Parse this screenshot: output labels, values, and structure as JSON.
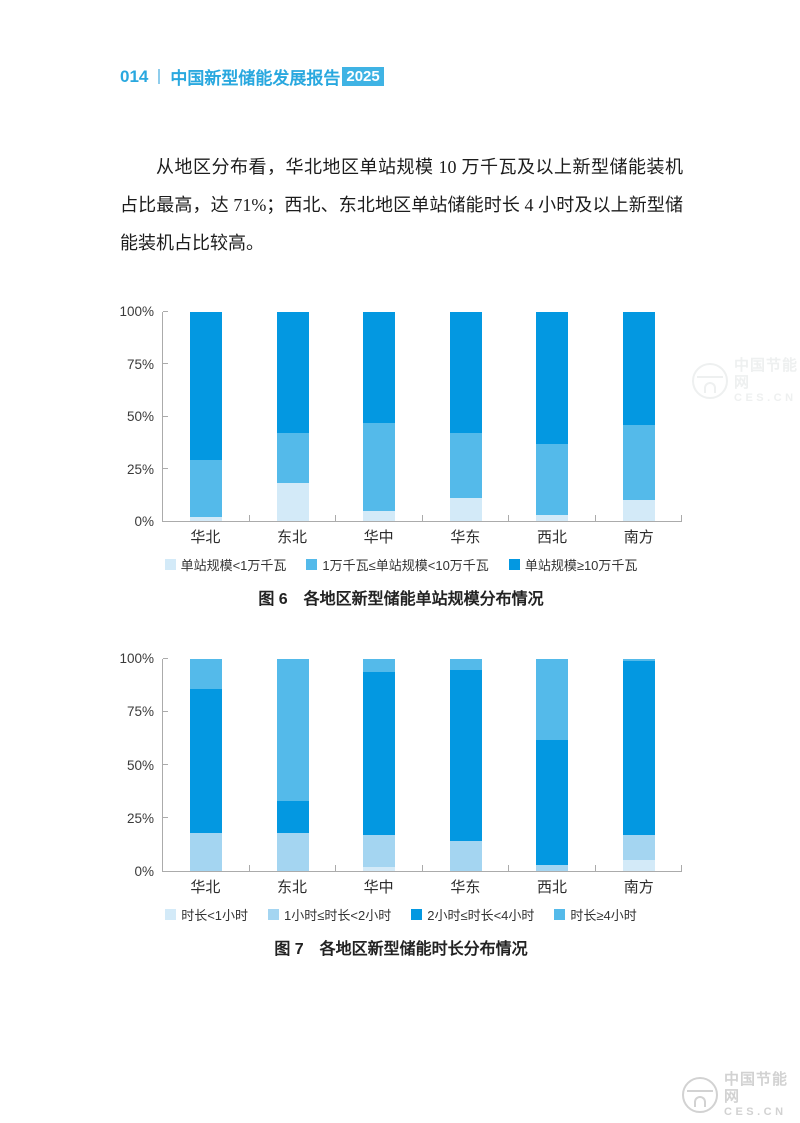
{
  "page": {
    "header": {
      "page_number": "014",
      "title": "中国新型储能发展报告",
      "year_badge": "2025"
    },
    "paragraph": "从地区分布看，华北地区单站规模 10 万千瓦及以上新型储能装机占比最高，达 71%；西北、东北地区单站储能时长 4 小时及以上新型储能装机占比较高。",
    "watermark": {
      "site_name": "中国节能网",
      "site_url": "CES.CN"
    }
  },
  "colors": {
    "accent_blue": "#29a8df",
    "badge_bg": "#3fb3e4",
    "pale_blue": "#d3eaf8",
    "light_blue": "#a4d5f1",
    "medium_blue": "#54baea",
    "dark_blue": "#0398e1",
    "axis_gray": "#ababab"
  },
  "chart_data": [
    {
      "type": "bar",
      "stacked": true,
      "caption_label": "图 6",
      "caption_title": "各地区新型储能单站规模分布情况",
      "categories": [
        "华北",
        "东北",
        "华中",
        "华东",
        "西北",
        "南方"
      ],
      "series": [
        {
          "name": "单站规模<1万千瓦",
          "color_key": "pale_blue",
          "values": [
            2,
            18,
            5,
            11,
            3,
            10
          ]
        },
        {
          "name": "1万千瓦≤单站规模<10万千瓦",
          "color_key": "medium_blue",
          "values": [
            27,
            24,
            42,
            31,
            34,
            36
          ]
        },
        {
          "name": "单站规模≥10万千瓦",
          "color_key": "dark_blue",
          "values": [
            71,
            58,
            53,
            58,
            63,
            54
          ]
        }
      ],
      "ylabel_ticks": [
        "0%",
        "25%",
        "50%",
        "75%",
        "100%"
      ],
      "ylim": [
        0,
        100
      ],
      "unit": "percent",
      "grid": false,
      "legend_position": "bottom"
    },
    {
      "type": "bar",
      "stacked": true,
      "caption_label": "图 7",
      "caption_title": "各地区新型储能时长分布情况",
      "categories": [
        "华北",
        "东北",
        "华中",
        "华东",
        "西北",
        "南方"
      ],
      "series": [
        {
          "name": "时长<1小时",
          "color_key": "pale_blue",
          "values": [
            0,
            0,
            2,
            0,
            0,
            5
          ]
        },
        {
          "name": "1小时≤时长<2小时",
          "color_key": "light_blue",
          "values": [
            18,
            18,
            15,
            14,
            3,
            12
          ]
        },
        {
          "name": "2小时≤时长<4小时",
          "color_key": "dark_blue",
          "values": [
            68,
            15,
            77,
            81,
            59,
            82
          ]
        },
        {
          "name": "时长≥4小时",
          "color_key": "medium_blue",
          "values": [
            14,
            67,
            6,
            5,
            38,
            1
          ]
        }
      ],
      "ylabel_ticks": [
        "0%",
        "25%",
        "50%",
        "75%",
        "100%"
      ],
      "ylim": [
        0,
        100
      ],
      "unit": "percent",
      "grid": false,
      "legend_position": "bottom"
    }
  ]
}
